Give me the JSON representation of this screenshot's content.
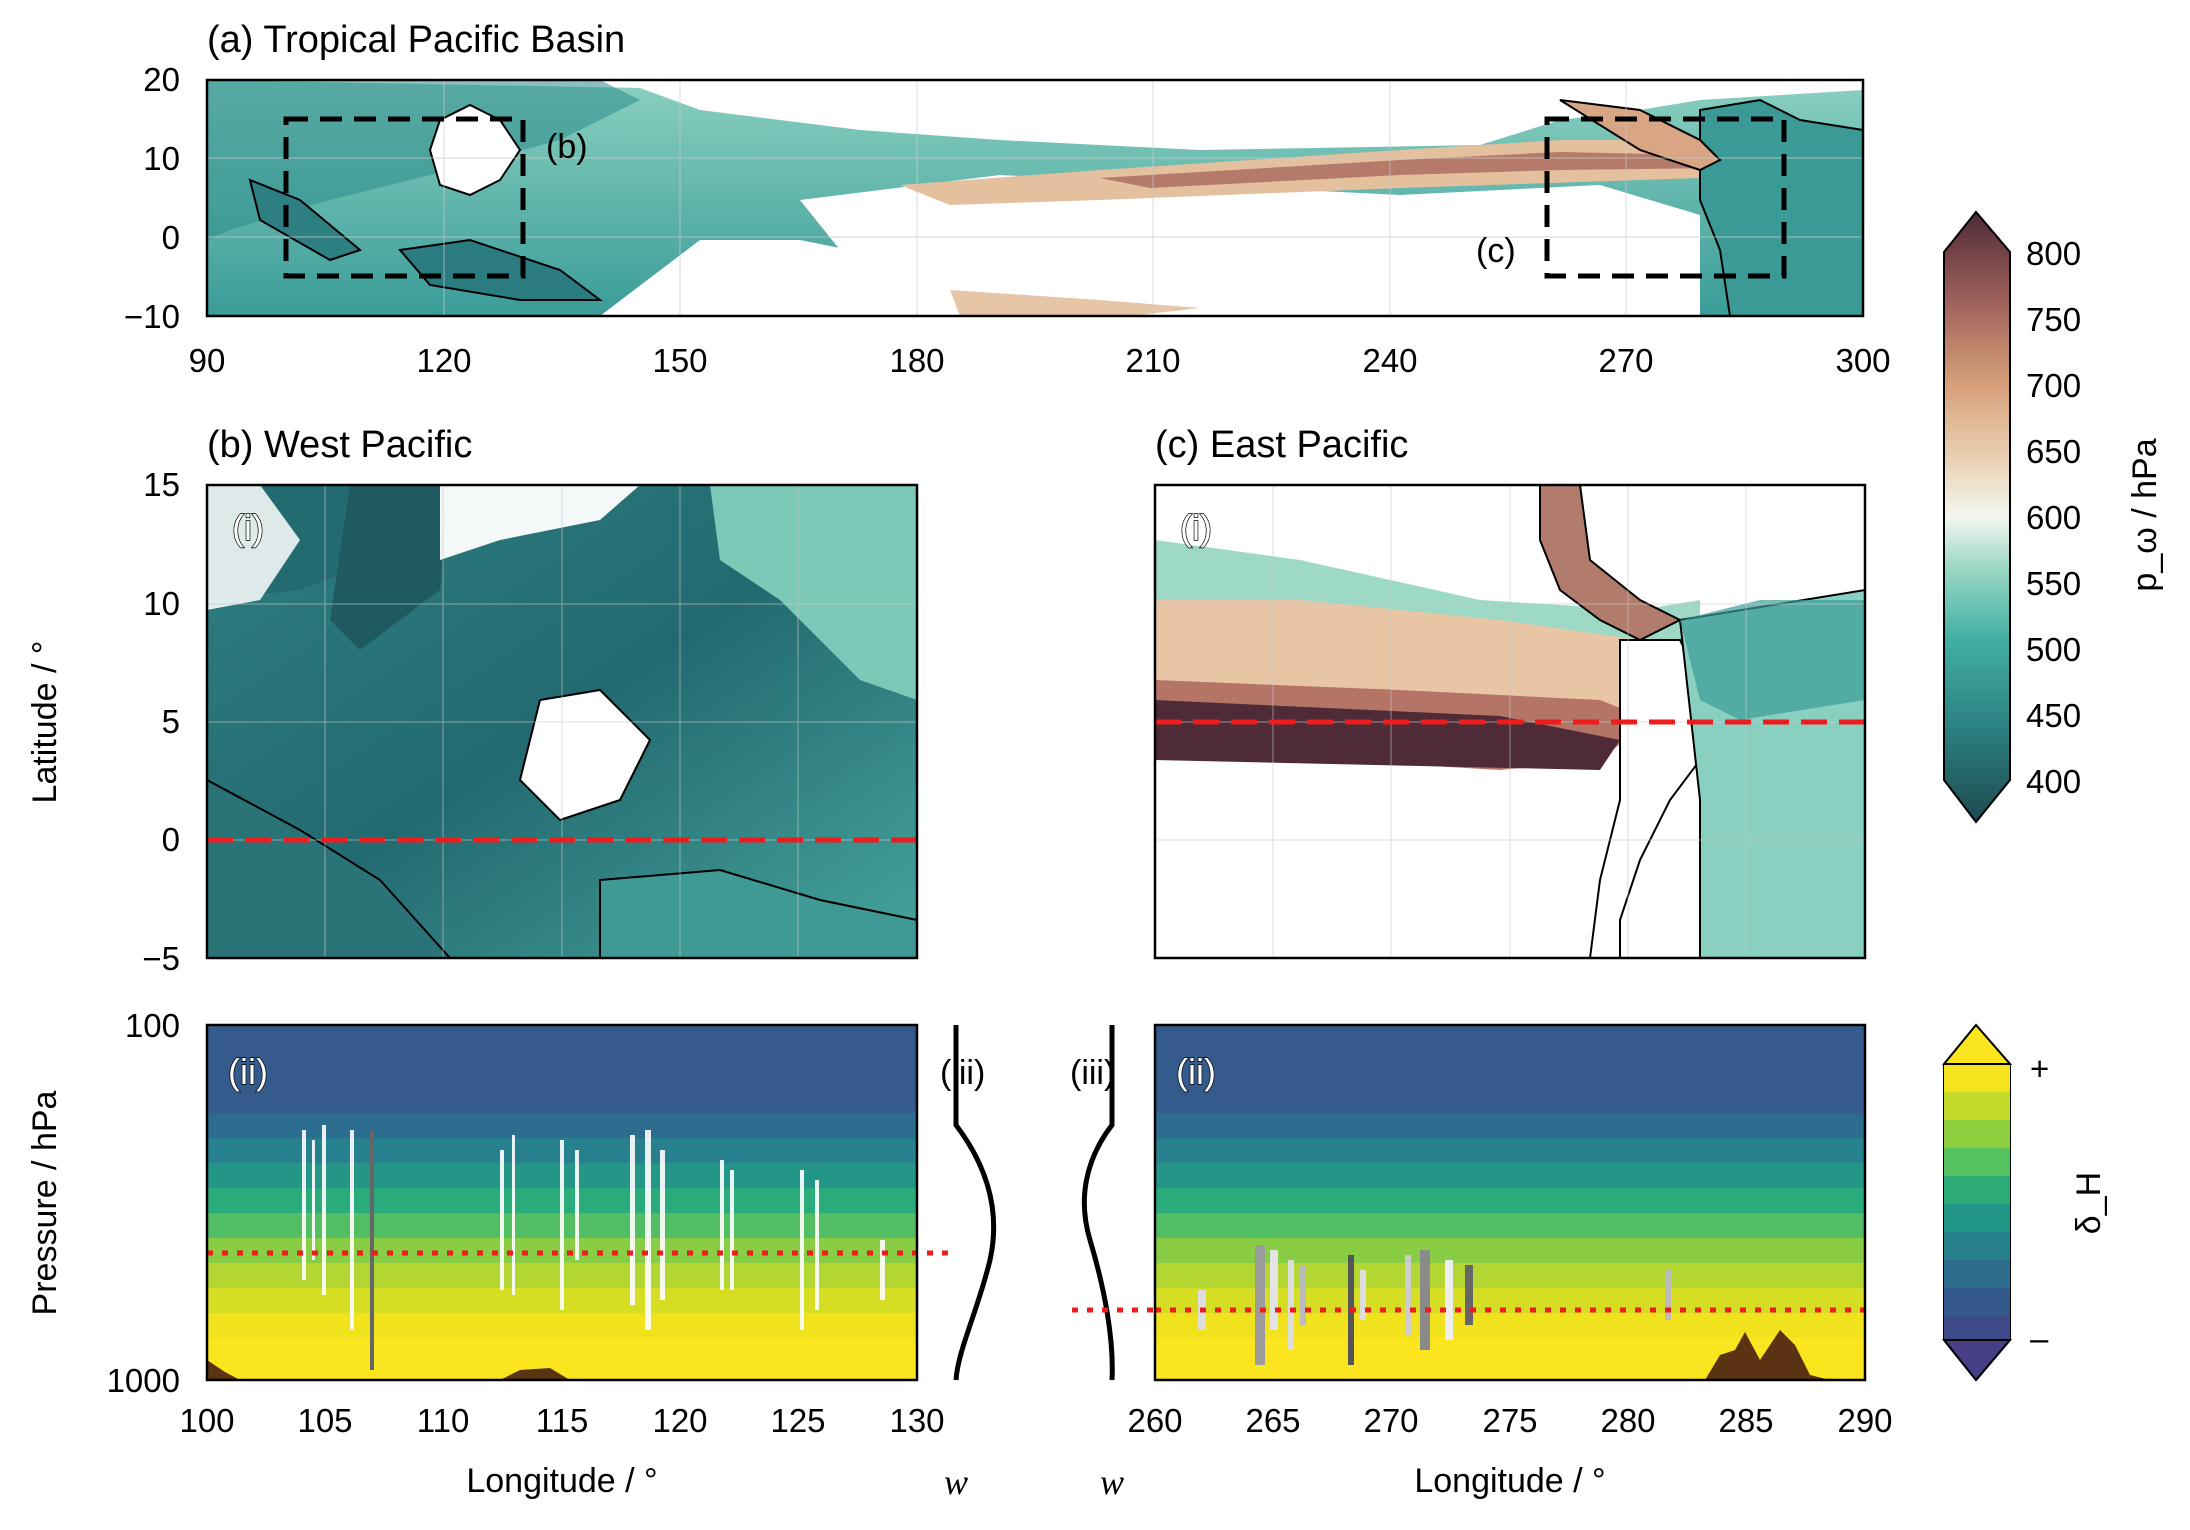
{
  "panels": {
    "a": {
      "title": "(a) Tropical Pacific Basin",
      "box_b_label": "(b)",
      "box_c_label": "(c)"
    },
    "b": {
      "title": "(b) West Pacific",
      "map_label": "(i)",
      "section_label": "(ii)",
      "profile_label": "(iii)"
    },
    "c": {
      "title": "(c) East Pacific",
      "map_label": "(i)",
      "section_label": "(ii)",
      "profile_label": "(iii)"
    }
  },
  "axes_text": {
    "latitude": "Latitude / °",
    "pressure": "Pressure / hPa",
    "longitude_b": "Longitude / °",
    "longitude_c": "Longitude / °",
    "w_b": "w",
    "w_c": "w"
  },
  "colorbars": {
    "p_omega": {
      "label": "p_ω / hPa",
      "ticks": [
        "800",
        "750",
        "700",
        "650",
        "600",
        "550",
        "500",
        "450",
        "400"
      ]
    },
    "delta_h": {
      "label": "δ_H",
      "ticks": [
        "+",
        "–"
      ]
    }
  },
  "chart_data": [
    {
      "type": "heatmap",
      "title": "(a) Tropical Pacific Basin",
      "xlim": [
        90,
        300
      ],
      "ylim": [
        -10,
        20
      ],
      "xticks": [
        90,
        120,
        150,
        180,
        210,
        240,
        270,
        300
      ],
      "yticks": [
        -10,
        0,
        10,
        20
      ],
      "variable": "p_omega (hPa)",
      "colorbar_range": [
        400,
        800
      ],
      "annotations": [
        {
          "label": "(b)",
          "box_lon": [
            100,
            130
          ],
          "box_lat": [
            -5,
            15
          ]
        },
        {
          "label": "(c)",
          "box_lon": [
            260,
            290
          ],
          "box_lat": [
            -5,
            15
          ]
        }
      ]
    },
    {
      "type": "heatmap",
      "title": "(b) West Pacific",
      "subpanel": "(i)",
      "xlim": [
        100,
        130
      ],
      "ylim": [
        -5,
        15
      ],
      "yticks": [
        -5,
        0,
        5,
        10,
        15
      ],
      "ylabel": "Latitude / °",
      "section_line_lat": 0
    },
    {
      "type": "heatmap",
      "title": "(c) East Pacific",
      "subpanel": "(i)",
      "xlim": [
        260,
        290
      ],
      "ylim": [
        -5,
        15
      ],
      "section_line_lat": 5
    },
    {
      "type": "heatmap",
      "subpanel": "(ii)",
      "xlim": [
        100,
        130
      ],
      "xticks": [
        100,
        105,
        110,
        115,
        120,
        125,
        130
      ],
      "xlabel": "Longitude / °",
      "ylabel": "Pressure / hPa",
      "ylim": [
        1000,
        100
      ],
      "yticks": [
        100,
        1000
      ],
      "reference_pressure_line": 500
    },
    {
      "type": "heatmap",
      "subpanel": "(ii)",
      "xlim": [
        260,
        290
      ],
      "xticks": [
        260,
        265,
        270,
        275,
        280,
        285,
        290
      ],
      "xlabel": "Longitude / °",
      "ylim": [
        1000,
        100
      ],
      "reference_pressure_line": 700
    },
    {
      "type": "line",
      "subpanel": "(iii)",
      "xlabel": "w",
      "ylim": [
        1000,
        100
      ],
      "description_series": "vertical velocity profile, West Pacific"
    },
    {
      "type": "line",
      "subpanel": "(iii)",
      "xlabel": "w",
      "ylim": [
        1000,
        100
      ],
      "description_series": "vertical velocity profile, East Pacific"
    }
  ]
}
